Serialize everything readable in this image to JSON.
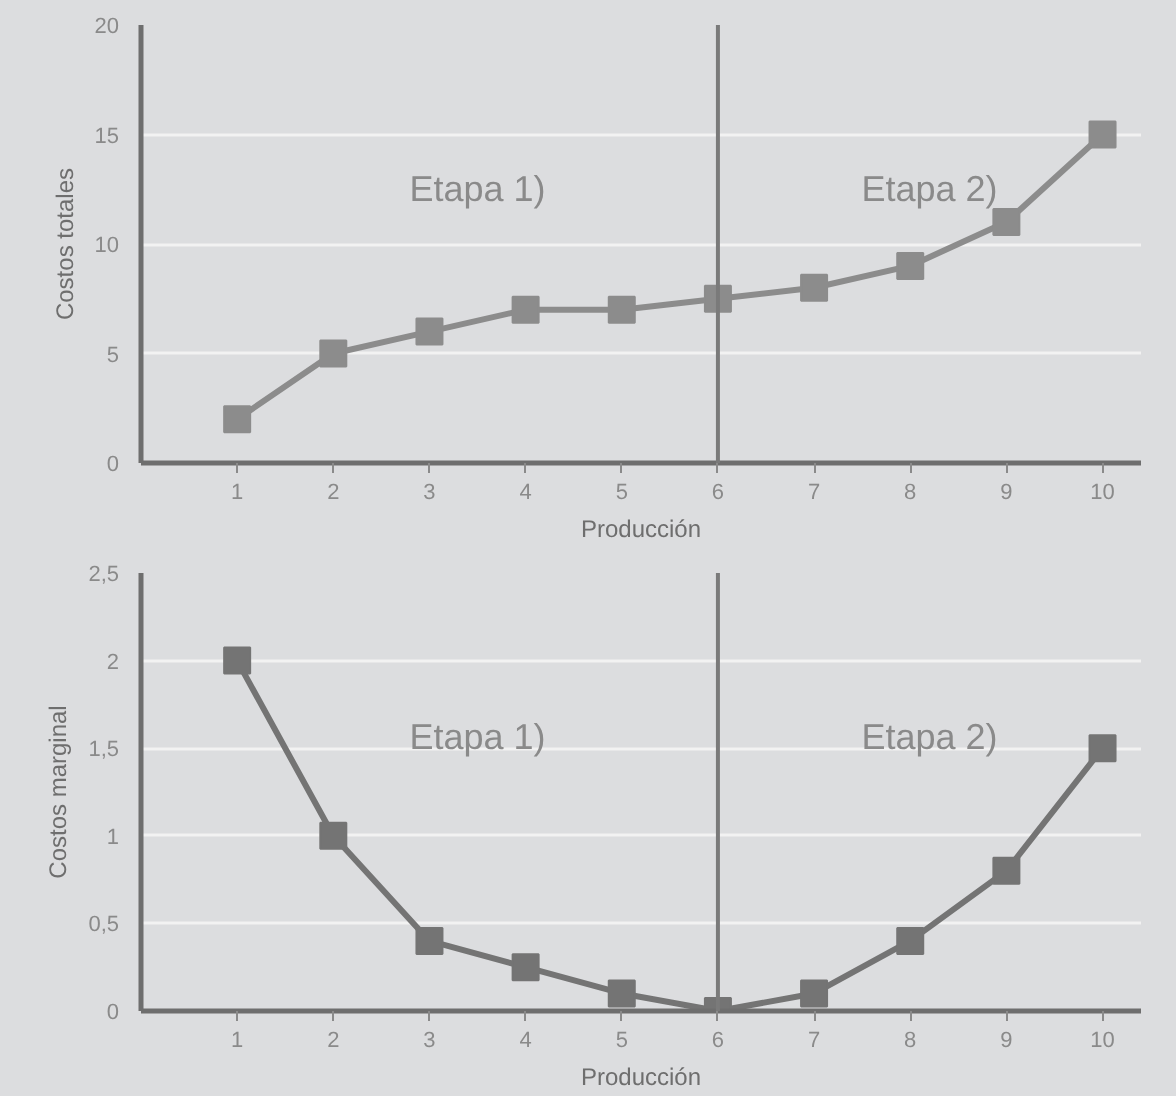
{
  "chart_data": [
    {
      "type": "line",
      "xlabel": "Producción",
      "ylabel": "Costos totales",
      "x": [
        1,
        2,
        3,
        4,
        5,
        6,
        7,
        8,
        9,
        10
      ],
      "series": [
        {
          "color": "#8c8c8c",
          "values": [
            2,
            5,
            6,
            7,
            7,
            7.5,
            8,
            9,
            11,
            15
          ]
        }
      ],
      "xlim": [
        0,
        10.4
      ],
      "xticks": [
        1,
        2,
        3,
        4,
        5,
        6,
        7,
        8,
        9,
        10
      ],
      "ylim": [
        0,
        20
      ],
      "yticks": [
        0,
        5,
        10,
        15,
        20
      ],
      "grid": "y",
      "marker": "square",
      "line_style": "solid",
      "ref_lines": [
        {
          "axis": "x",
          "value": 6,
          "color": "#7a7a7a"
        }
      ],
      "annotations": [
        "Etapa 1)",
        "Etapa 2)"
      ]
    },
    {
      "type": "line",
      "xlabel": "Producción",
      "ylabel": "Costos marginal",
      "x": [
        1,
        2,
        3,
        4,
        5,
        6,
        7,
        8,
        9,
        10
      ],
      "series": [
        {
          "color": "#747474",
          "values": [
            2,
            1,
            0.4,
            0.25,
            0.1,
            0,
            0.1,
            0.4,
            0.8,
            1.5
          ]
        }
      ],
      "xlim": [
        0,
        10.4
      ],
      "xticks": [
        1,
        2,
        3,
        4,
        5,
        6,
        7,
        8,
        9,
        10
      ],
      "ylim": [
        0,
        2.5
      ],
      "yticks": [
        0,
        {
          "value": 0.5,
          "label": "0,5"
        },
        1,
        {
          "value": 1.5,
          "label": "1,5"
        },
        2,
        {
          "value": 2.5,
          "label": "2,5"
        }
      ],
      "grid": "y",
      "marker": "square",
      "line_style": "solid",
      "ref_lines": [
        {
          "axis": "x",
          "value": 6,
          "color": "#7a7a7a"
        }
      ],
      "annotations": [
        "Etapa 1)",
        "Etapa 2)"
      ]
    }
  ]
}
